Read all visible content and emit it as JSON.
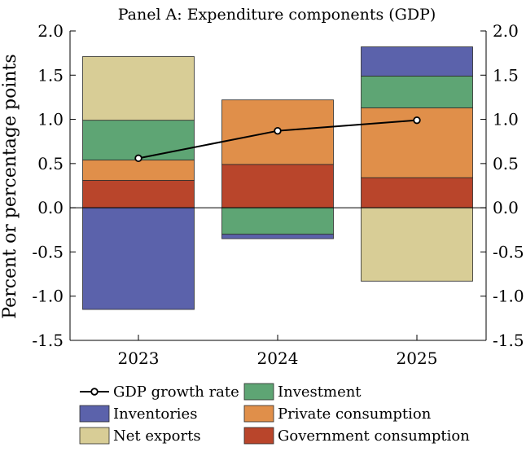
{
  "chart_data": {
    "type": "bar",
    "stacked": true,
    "title": "Panel A: Expenditure components (GDP)",
    "ylabel": "Percent or percentage points",
    "xlabel": "",
    "ylim": [
      -1.5,
      2.0
    ],
    "yticks": [
      2.0,
      1.5,
      1.0,
      0.5,
      0.0,
      -0.5,
      -1.0,
      -1.5
    ],
    "ytick_labels": [
      "2.0",
      "1.5",
      "1.0",
      "0.5",
      "0.0",
      "-0.5",
      "-1.0",
      "-1.5"
    ],
    "categories": [
      "2023",
      "2024",
      "2025"
    ],
    "series": [
      {
        "key": "government",
        "name": "Government consumption",
        "color": "#b9452b",
        "values": [
          0.31,
          0.49,
          0.34
        ]
      },
      {
        "key": "private",
        "name": "Private consumption",
        "color": "#e08f4a",
        "values": [
          0.23,
          0.73,
          0.79
        ]
      },
      {
        "key": "investment",
        "name": "Investment",
        "color": "#5ea574",
        "values": [
          0.45,
          -0.3,
          0.36
        ]
      },
      {
        "key": "inventories",
        "name": "Inventories",
        "color": "#5b62ab",
        "values": [
          -1.15,
          -0.05,
          0.33
        ]
      },
      {
        "key": "net_exports",
        "name": "Net exports",
        "color": "#d8cd96",
        "values": [
          0.72,
          0.0,
          -0.83
        ]
      }
    ],
    "line": {
      "name": "GDP growth rate",
      "color": "#000000",
      "values": [
        0.56,
        0.87,
        0.99
      ]
    },
    "legend": {
      "position": "bottom",
      "rows": [
        [
          {
            "label": "GDP growth rate",
            "kind": "line"
          },
          {
            "label": "Investment",
            "kind": "box",
            "color": "#5ea574"
          }
        ],
        [
          {
            "label": "Inventories",
            "kind": "box",
            "color": "#5b62ab"
          },
          {
            "label": "Private consumption",
            "kind": "box",
            "color": "#e08f4a"
          }
        ],
        [
          {
            "label": "Net exports",
            "kind": "box",
            "color": "#d8cd96"
          },
          {
            "label": "Government consumption",
            "kind": "box",
            "color": "#b9452b"
          }
        ]
      ]
    }
  }
}
